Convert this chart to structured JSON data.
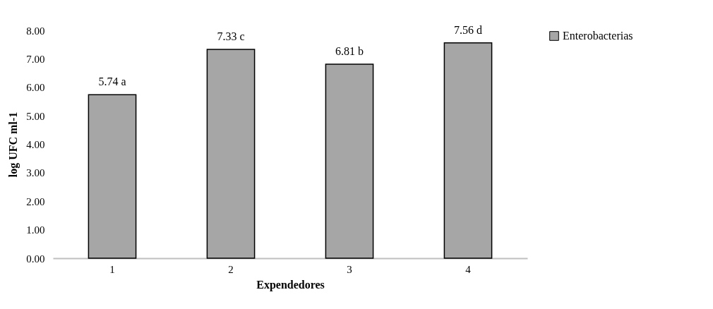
{
  "chart_data": {
    "type": "bar",
    "xlabel": "Expendedores",
    "ylabel": "log UFC ml-1",
    "categories": [
      "1",
      "2",
      "3",
      "4"
    ],
    "series": [
      {
        "name": "Enterobacterias",
        "color": "#a6a6a6",
        "values": [
          5.74,
          7.33,
          6.81,
          7.56
        ],
        "value_labels": [
          "5.74 a",
          "7.33 c",
          "6.81 b",
          "7.56 d"
        ]
      }
    ],
    "ylim": [
      0,
      8
    ],
    "yticks": [
      {
        "value": 0,
        "label": "0.00"
      },
      {
        "value": 1,
        "label": "1.00"
      },
      {
        "value": 2,
        "label": "2.00"
      },
      {
        "value": 3,
        "label": "3.00"
      },
      {
        "value": 4,
        "label": "4.00"
      },
      {
        "value": 5,
        "label": "5.00"
      },
      {
        "value": 6,
        "label": "6.00"
      },
      {
        "value": 7,
        "label": "7.00"
      },
      {
        "value": 8,
        "label": "8.00"
      }
    ],
    "grid": false,
    "legend": "right"
  }
}
